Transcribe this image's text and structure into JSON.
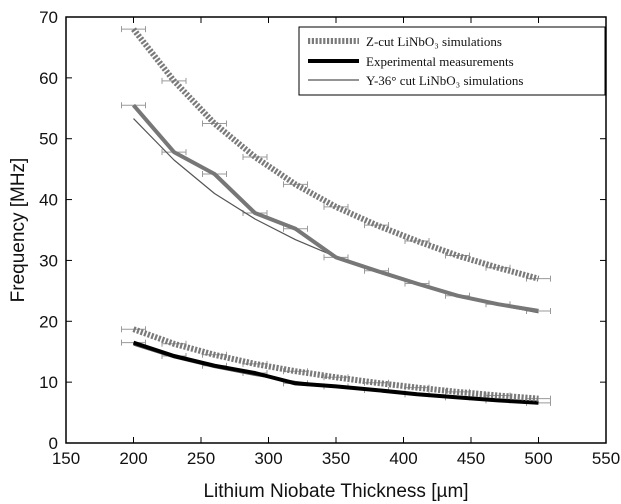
{
  "chart_data": {
    "type": "line",
    "xlabel": "Lithium Niobate Thickness [µm]",
    "ylabel": "Frequency [MHz]",
    "xlim": [
      150,
      550
    ],
    "ylim": [
      0,
      70
    ],
    "xticks": [
      150,
      200,
      250,
      300,
      350,
      400,
      450,
      500,
      550
    ],
    "yticks": [
      0,
      10,
      20,
      30,
      40,
      50,
      60,
      70
    ],
    "grid": false,
    "legend_position": "top-right",
    "x": [
      200,
      230,
      260,
      290,
      320,
      350,
      380,
      410,
      440,
      470,
      500
    ],
    "series": [
      {
        "name": "Z-cut LiNbO3 simulations",
        "legend_label": "Z-cut LiNbO₃ simulations",
        "style": "dotted-thick",
        "color": "#7a7a7a",
        "groups": [
          [
            68.0,
            59.5,
            52.5,
            47.0,
            42.5,
            38.8,
            35.8,
            33.2,
            30.8,
            28.8,
            27.0
          ],
          [
            18.7,
            16.3,
            14.5,
            13.0,
            11.8,
            10.8,
            9.9,
            9.1,
            8.4,
            7.8,
            7.3
          ]
        ]
      },
      {
        "name": "Experimental measurements",
        "legend_label": "Experimental measurements",
        "style": "solid-thick",
        "color_upper": "#777777",
        "color_lower": "#000000",
        "groups": [
          [
            55.5,
            47.8,
            44.2,
            37.8,
            35.2,
            30.5,
            28.3,
            26.2,
            24.2,
            22.8,
            21.7
          ],
          [
            16.5,
            14.3,
            12.7,
            11.5,
            9.8,
            9.3,
            8.7,
            8.0,
            7.5,
            7.0,
            6.6
          ]
        ]
      },
      {
        "name": "Y-36° cut LiNbO3 simulations",
        "legend_label": "Y-36° cut LiNbO₃ simulations",
        "style": "solid-thin",
        "color": "#555555",
        "groups": [
          [
            53.3,
            46.5,
            41.0,
            36.8,
            33.4,
            30.6,
            28.1,
            26.0,
            24.2,
            22.7,
            21.4
          ],
          [
            16.1,
            14.0,
            12.4,
            11.1,
            10.1,
            9.3,
            8.6,
            8.0,
            7.5,
            7.0,
            6.6
          ]
        ]
      }
    ]
  }
}
